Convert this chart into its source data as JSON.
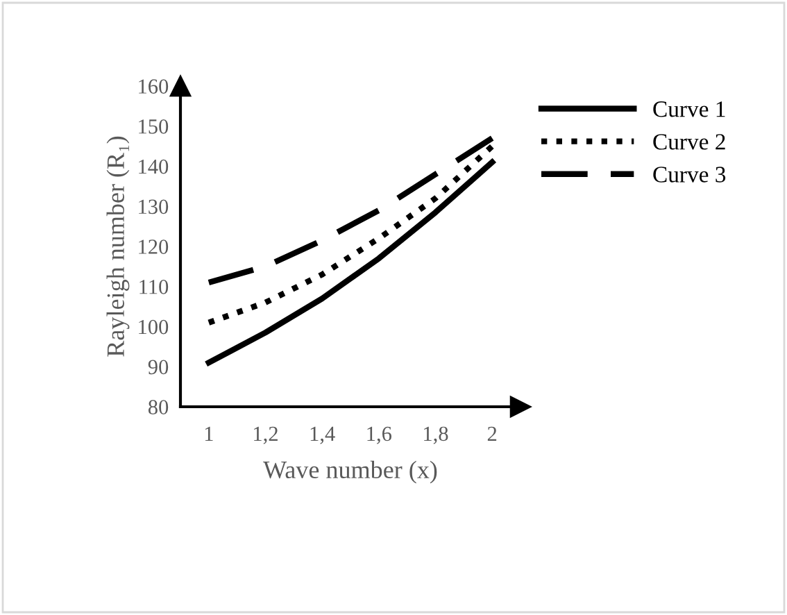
{
  "chart_data": {
    "type": "line",
    "xlabel": "Wave number (x)",
    "ylabel": "Rayleigh number (R₁)",
    "x": [
      1,
      1.2,
      1.4,
      1.6,
      1.8,
      2
    ],
    "series": [
      {
        "name": "Curve 1",
        "color": "#000000",
        "line_style": "solid",
        "values": [
          91,
          98.5,
          107,
          117,
          128.5,
          141
        ]
      },
      {
        "name": "Curve 2",
        "color": "#000000",
        "line_style": "dotted",
        "values": [
          101,
          106,
          113,
          122,
          132,
          145
        ]
      },
      {
        "name": "Curve 3",
        "color": "#000000",
        "line_style": "dashed",
        "values": [
          111,
          115,
          121.5,
          129,
          138,
          147
        ]
      }
    ],
    "xlim": [
      0.9,
      2.1
    ],
    "ylim": [
      80,
      160
    ],
    "xticks": [
      1,
      {
        "value": 1.2,
        "label": "1,2"
      },
      {
        "value": 1.4,
        "label": "1,4"
      },
      {
        "value": 1.6,
        "label": "1,6"
      },
      {
        "value": 1.8,
        "label": "1,8"
      },
      2
    ],
    "yticks": [
      80,
      90,
      100,
      110,
      120,
      130,
      140,
      150,
      160
    ],
    "grid": false,
    "legend": "right",
    "marker": "none"
  }
}
